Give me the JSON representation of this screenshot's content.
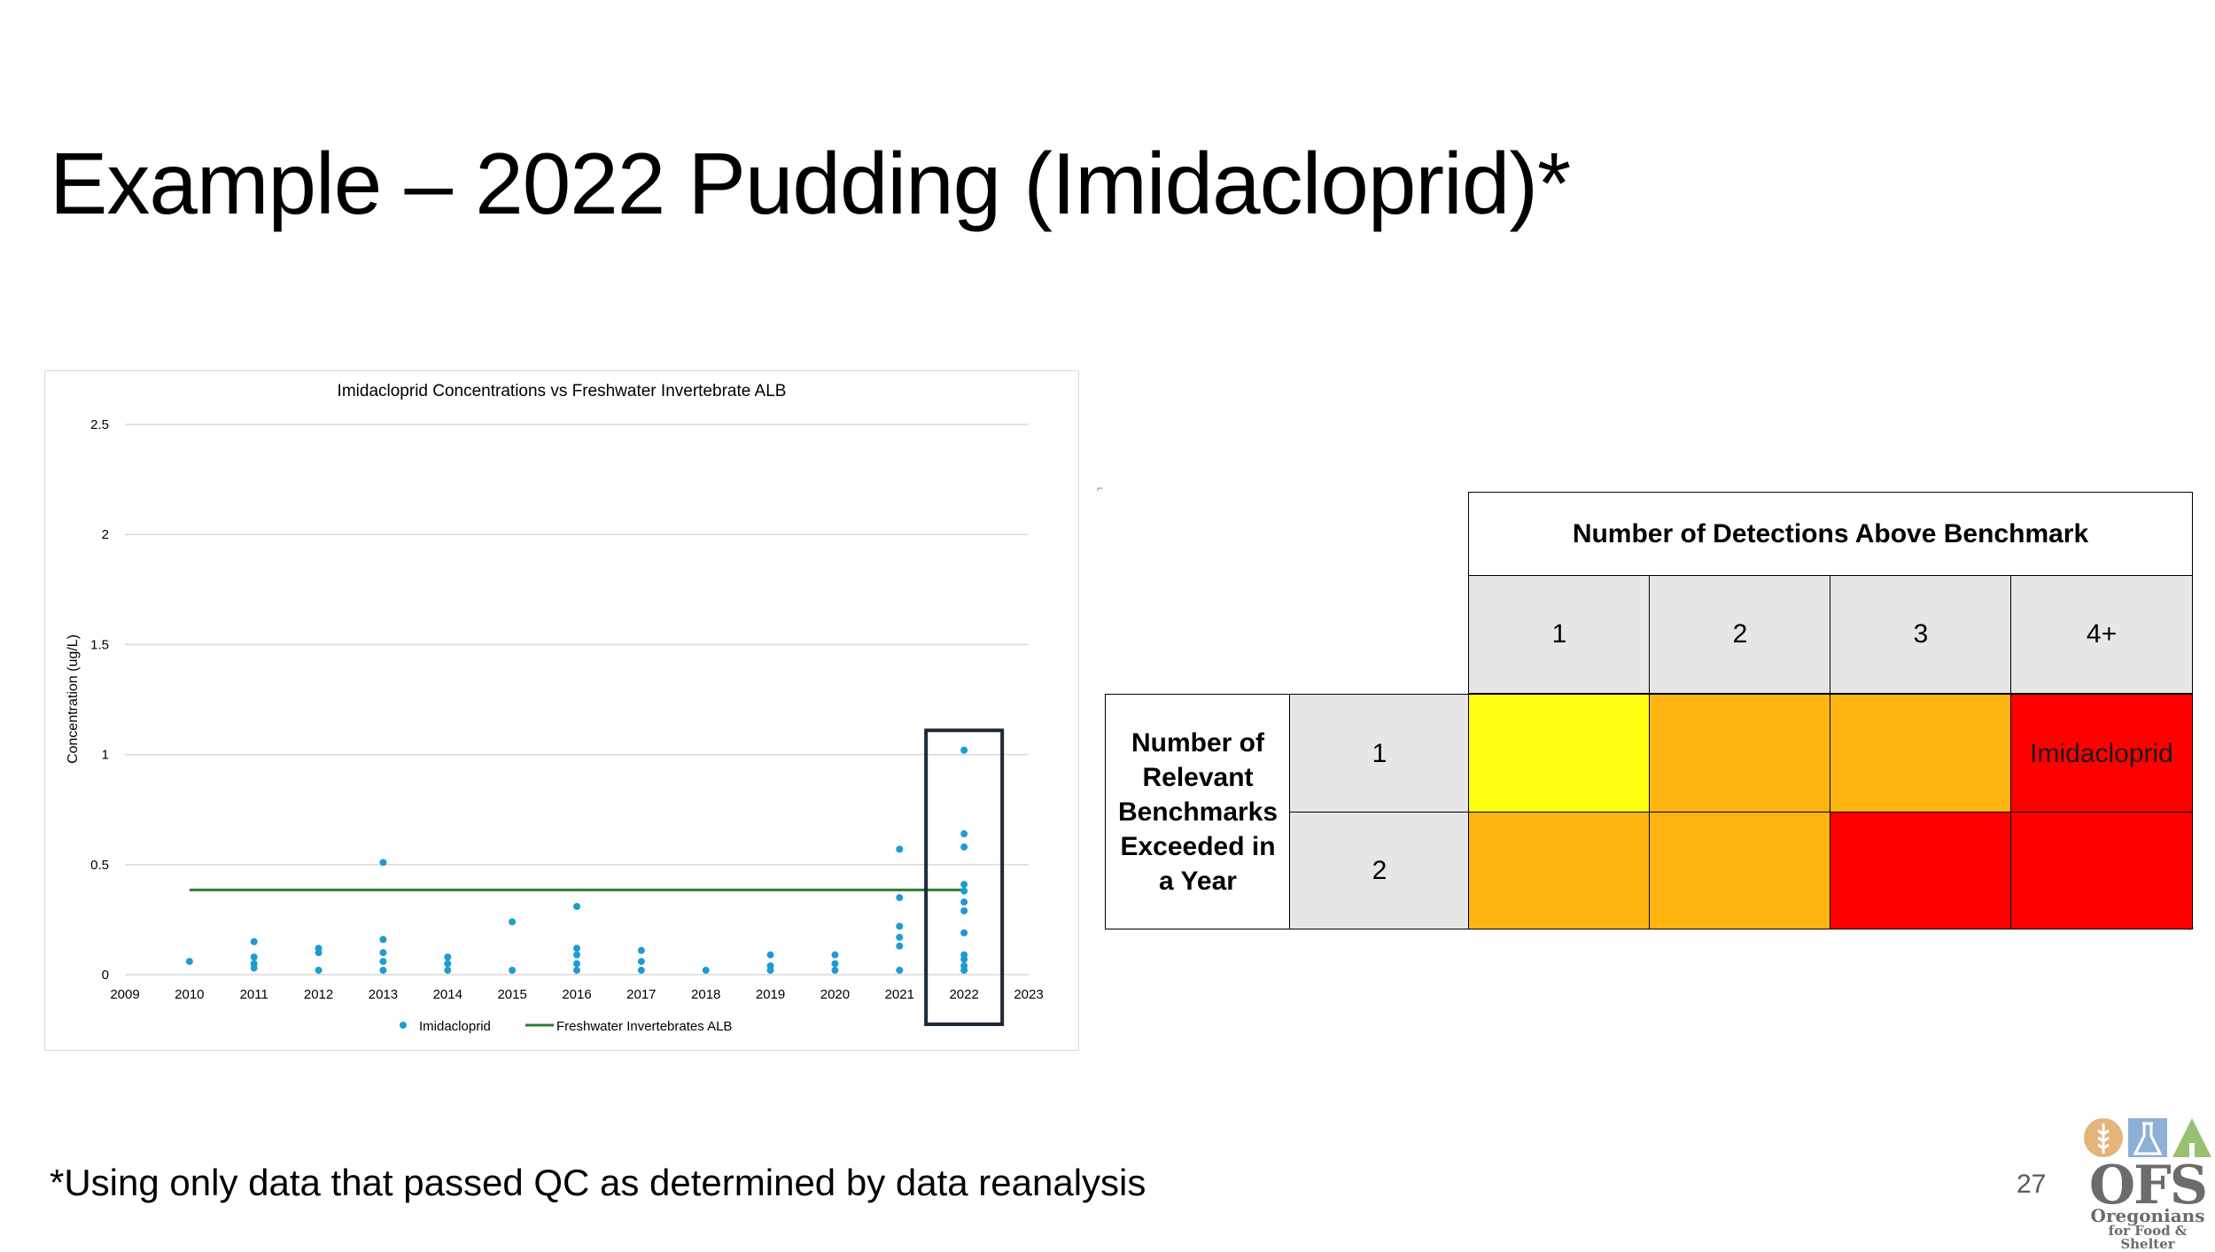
{
  "slide": {
    "title": "Example – 2022 Pudding (Imidacloprid)*",
    "footnote": "*Using only data that passed QC as determined by data reanalysis",
    "page_number": "27"
  },
  "chart_data": {
    "type": "scatter",
    "title": "Imidacloprid Concentrations vs Freshwater Invertebrate ALB",
    "xlabel": "",
    "ylabel": "Concentration (ug/L)",
    "xlim": [
      2009,
      2023
    ],
    "ylim": [
      0,
      2.5
    ],
    "x_ticks": [
      "2009",
      "2010",
      "2011",
      "2012",
      "2013",
      "2014",
      "2015",
      "2016",
      "2017",
      "2018",
      "2019",
      "2020",
      "2021",
      "2022",
      "2023"
    ],
    "y_ticks": [
      "0",
      "0.5",
      "1",
      "1.5",
      "2",
      "2.5"
    ],
    "grid": true,
    "legend_position": "bottom",
    "series": [
      {
        "name": "Imidacloprid",
        "color": "#1f9bd1",
        "points": [
          [
            2010,
            0.06
          ],
          [
            2011,
            0.15
          ],
          [
            2011,
            0.08
          ],
          [
            2011,
            0.05
          ],
          [
            2011,
            0.03
          ],
          [
            2012,
            0.12
          ],
          [
            2012,
            0.1
          ],
          [
            2012,
            0.02
          ],
          [
            2013,
            0.51
          ],
          [
            2013,
            0.16
          ],
          [
            2013,
            0.1
          ],
          [
            2013,
            0.06
          ],
          [
            2013,
            0.02
          ],
          [
            2014,
            0.08
          ],
          [
            2014,
            0.05
          ],
          [
            2014,
            0.02
          ],
          [
            2015,
            0.24
          ],
          [
            2015,
            0.02
          ],
          [
            2016,
            0.31
          ],
          [
            2016,
            0.12
          ],
          [
            2016,
            0.09
          ],
          [
            2016,
            0.05
          ],
          [
            2016,
            0.02
          ],
          [
            2017,
            0.11
          ],
          [
            2017,
            0.06
          ],
          [
            2017,
            0.02
          ],
          [
            2018,
            0.02
          ],
          [
            2019,
            0.09
          ],
          [
            2019,
            0.04
          ],
          [
            2019,
            0.02
          ],
          [
            2020,
            0.09
          ],
          [
            2020,
            0.05
          ],
          [
            2020,
            0.02
          ],
          [
            2021,
            0.57
          ],
          [
            2021,
            0.35
          ],
          [
            2021,
            0.22
          ],
          [
            2021,
            0.17
          ],
          [
            2021,
            0.13
          ],
          [
            2021,
            0.02
          ],
          [
            2022,
            1.02
          ],
          [
            2022,
            0.64
          ],
          [
            2022,
            0.58
          ],
          [
            2022,
            0.41
          ],
          [
            2022,
            0.38
          ],
          [
            2022,
            0.33
          ],
          [
            2022,
            0.29
          ],
          [
            2022,
            0.19
          ],
          [
            2022,
            0.09
          ],
          [
            2022,
            0.07
          ],
          [
            2022,
            0.04
          ],
          [
            2022,
            0.02
          ]
        ]
      },
      {
        "name": "Freshwater Invertebrates ALB",
        "color": "#2e7d32",
        "type": "line",
        "x": [
          2010,
          2022
        ],
        "y": [
          0.385,
          0.385
        ]
      }
    ],
    "highlight_year": 2022,
    "highlight_color": "#1b2a38"
  },
  "matrix": {
    "col_header": "Number of Detections Above Benchmark",
    "col_labels": [
      "1",
      "2",
      "3",
      "4+"
    ],
    "row_header": "Number of Relevant Benchmarks Exceeded in a Year",
    "row_labels": [
      "1",
      "2"
    ],
    "row1_col4_text": "Imidacloprid",
    "colors": {
      "yellow": "#ffff14",
      "orange": "#ffb511",
      "red": "#ff0000",
      "gray": "#e6e6e6"
    }
  },
  "logo": {
    "text": "OFS",
    "line1": "Oregonians",
    "line2": "for Food & Shelter"
  }
}
